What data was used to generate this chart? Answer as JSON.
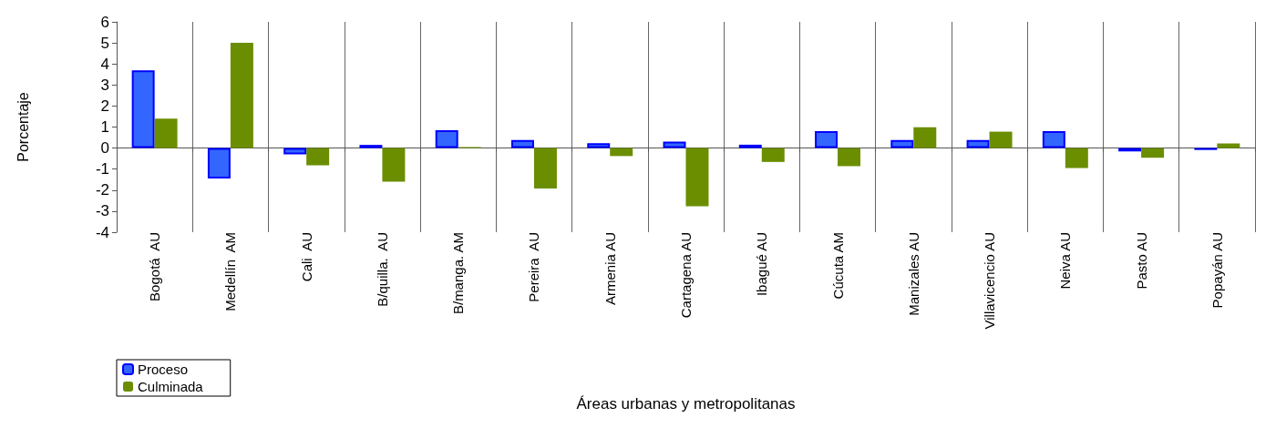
{
  "chart_data": {
    "type": "bar",
    "xlabel": "Áreas urbanas y metropolitanas",
    "ylabel": "Porcentaje",
    "categories": [
      "Bogotá  AU",
      "Medellín  AM",
      "Cali  AU",
      "B/quilla.  AU",
      "B/manga. AM",
      "Pereira  AU",
      "Armenia AU",
      "Cartagena AU",
      "Ibagué AU",
      "Cúcuta AM",
      "Manizales AU",
      "Villavicencio AU",
      "Neiva AU",
      "Pasto AU",
      "Popayán AU"
    ],
    "series": [
      {
        "name": "Proceso",
        "color": "#3366ff",
        "values": [
          3.7,
          -1.45,
          -0.3,
          0.15,
          0.85,
          0.38,
          0.23,
          0.31,
          0.16,
          0.8,
          0.38,
          0.38,
          0.8,
          -0.16,
          -0.09
        ]
      },
      {
        "name": "Culminada",
        "color": "#6b8e00",
        "values": [
          1.4,
          5.0,
          -0.82,
          -1.6,
          0.05,
          -1.92,
          -0.38,
          -2.77,
          -0.66,
          -0.86,
          0.99,
          0.78,
          -0.95,
          -0.46,
          0.22
        ]
      }
    ],
    "ylim": [
      -4,
      6
    ],
    "yticks": [
      -4,
      -3,
      -2,
      -1,
      0,
      1,
      2,
      3,
      4,
      5,
      6
    ],
    "grid": "x",
    "legend": "bottom left"
  }
}
